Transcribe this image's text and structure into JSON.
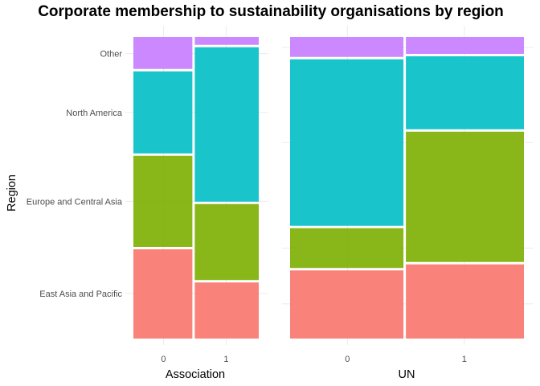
{
  "chart_data": {
    "type": "mosaic",
    "title": "Corporate membership to sustainability organisations by region",
    "ylabel": "Region",
    "grid": true,
    "legend": "none",
    "categories": [
      "East Asia and Pacific",
      "Europe and Central Asia",
      "North America",
      "Other"
    ],
    "colors": {
      "East Asia and Pacific": "#F8766D",
      "Europe and Central Asia": "#7CAE00",
      "North America": "#00BFC4",
      "Other": "#C77CFF"
    },
    "panels": [
      {
        "xlabel": "Association",
        "columns": [
          {
            "x": "0",
            "width": 0.48,
            "proportions": [
              0.3,
              0.31,
              0.28,
              0.11
            ]
          },
          {
            "x": "1",
            "width": 0.52,
            "proportions": [
              0.19,
              0.26,
              0.52,
              0.03
            ]
          }
        ]
      },
      {
        "xlabel": "UN",
        "columns": [
          {
            "x": "0",
            "width": 0.49,
            "proportions": [
              0.23,
              0.14,
              0.56,
              0.07
            ]
          },
          {
            "x": "1",
            "width": 0.51,
            "proportions": [
              0.25,
              0.44,
              0.25,
              0.06
            ]
          }
        ]
      }
    ]
  }
}
